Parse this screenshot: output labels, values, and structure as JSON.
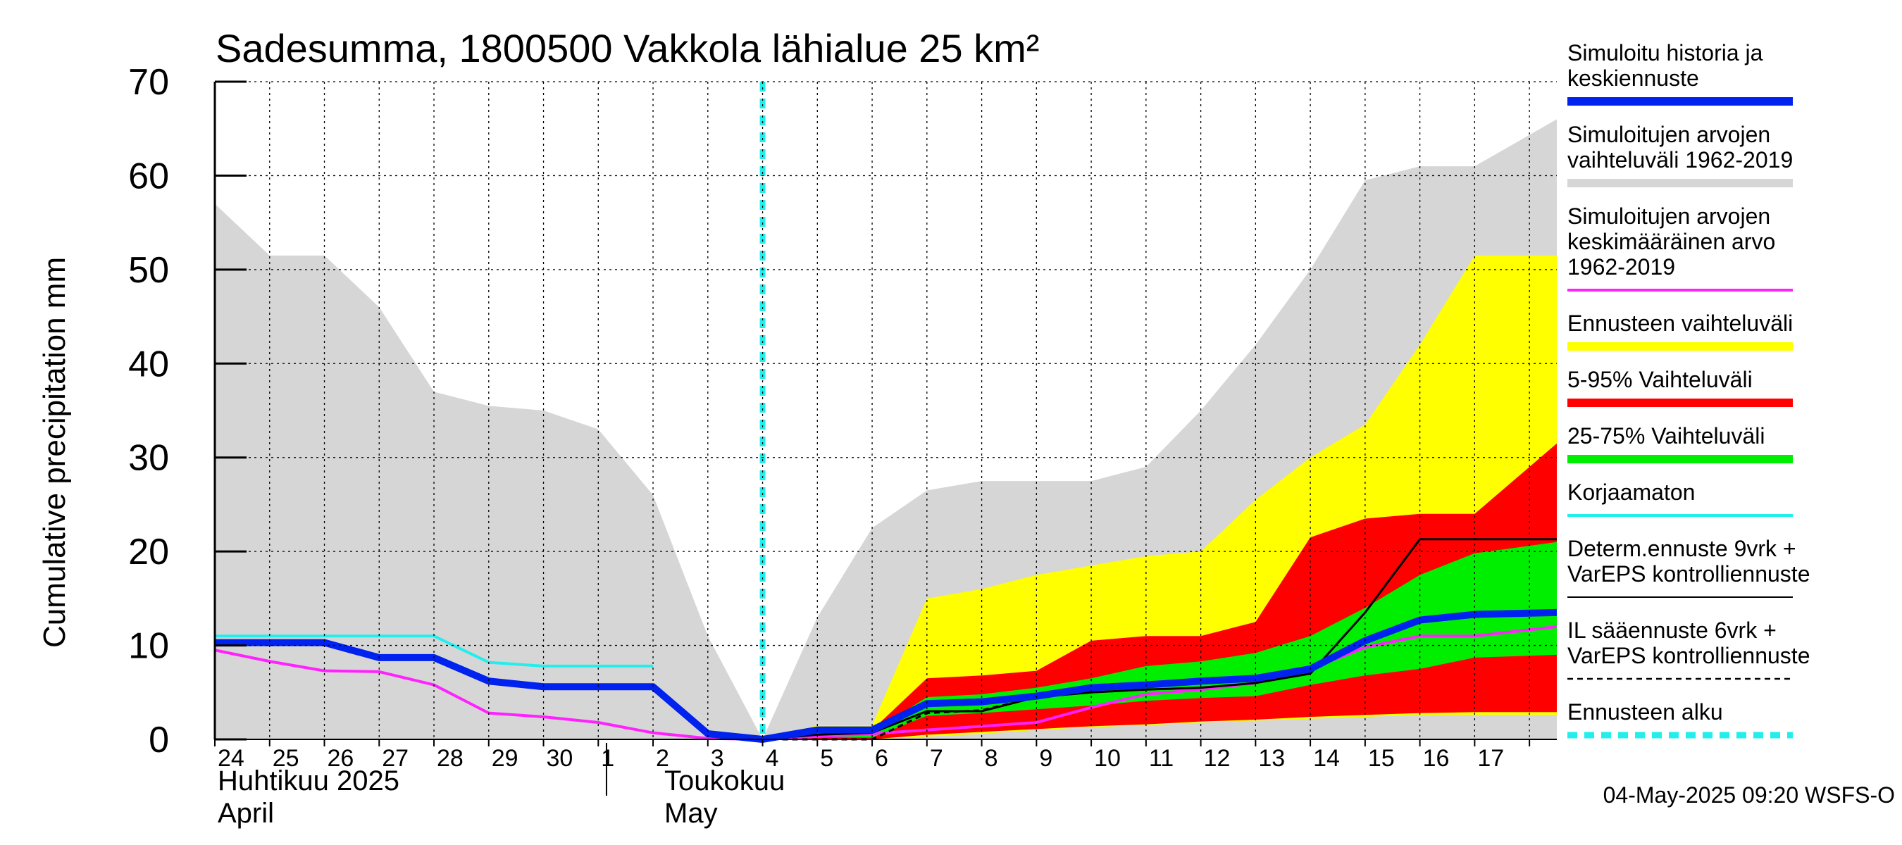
{
  "chart_data": {
    "type": "area",
    "title": "Sadesumma, 1800500 Vakkola lähialue 25 km²",
    "ylabel": "Cumulative precipitation   mm",
    "ylim": [
      0,
      70
    ],
    "yticks": [
      "0",
      "10",
      "20",
      "30",
      "40",
      "50",
      "60",
      "70"
    ],
    "day_labels": [
      "24",
      "25",
      "26",
      "27",
      "28",
      "29",
      "30",
      "1",
      "2",
      "3",
      "4",
      "5",
      "6",
      "7",
      "8",
      "9",
      "10",
      "11",
      "12",
      "13",
      "14",
      "15",
      "16",
      "17"
    ],
    "month_labels": {
      "april_fi": "Huhtikuu  2025",
      "april_en": "April",
      "may_fi": "Toukokuu",
      "may_en": "May"
    },
    "x_domain": [
      0,
      24.5
    ],
    "forecast_start_x": 10.0,
    "series": [
      {
        "name": "Simuloitujen arvojen vaihteluväli 1962-2019 (upper)",
        "x": [
          0,
          1,
          2,
          3,
          4,
          5,
          6,
          7,
          8,
          9,
          10,
          11,
          12,
          13,
          14,
          15,
          16,
          17,
          18,
          19,
          20,
          21,
          22,
          23,
          24.5
        ],
        "values": [
          57,
          51.5,
          51.5,
          46,
          37,
          35.5,
          35,
          33,
          26,
          11,
          0,
          13,
          22.5,
          26.5,
          27.5,
          27.5,
          27.5,
          29,
          35,
          42,
          50,
          59.5,
          61,
          61,
          66
        ]
      },
      {
        "name": "Ennusteen vaihteluväli (upper)",
        "x": [
          10,
          11,
          12,
          13,
          14,
          15,
          16,
          17,
          18,
          19,
          20,
          21,
          22,
          23,
          24.5
        ],
        "values": [
          0,
          1.5,
          1.5,
          15,
          16,
          17.5,
          18.5,
          19.5,
          20,
          25.5,
          30,
          33.5,
          42,
          51.5,
          51.5
        ]
      },
      {
        "name": "Ennusteen vaihteluväli (lower)",
        "x": [
          10,
          11,
          12,
          13,
          14,
          15,
          16,
          17,
          18,
          19,
          20,
          21,
          22,
          23,
          24.5
        ],
        "values": [
          0,
          0,
          0,
          0.3,
          0.6,
          1,
          1.3,
          1.5,
          1.8,
          2,
          2.2,
          2.4,
          2.6,
          2.6,
          2.6
        ]
      },
      {
        "name": "5-95% Vaihteluväli (upper)",
        "x": [
          10,
          11,
          12,
          13,
          14,
          15,
          16,
          17,
          18,
          19,
          20,
          21,
          22,
          23,
          24.5
        ],
        "values": [
          0,
          1,
          1,
          6.5,
          6.8,
          7.3,
          10.5,
          11,
          11,
          12.5,
          21.5,
          23.5,
          24,
          24,
          31.5
        ]
      },
      {
        "name": "5-95% Vaihteluväli (lower)",
        "x": [
          10,
          11,
          12,
          13,
          14,
          15,
          16,
          17,
          18,
          19,
          20,
          21,
          22,
          23,
          24.5
        ],
        "values": [
          0,
          0,
          0,
          0.5,
          0.8,
          1.1,
          1.4,
          1.6,
          1.9,
          2.1,
          2.4,
          2.6,
          2.8,
          2.9,
          2.9
        ]
      },
      {
        "name": "25-75% Vaihteluväli (upper)",
        "x": [
          10,
          11,
          12,
          13,
          14,
          15,
          16,
          17,
          18,
          19,
          20,
          21,
          22,
          23,
          24.5
        ],
        "values": [
          0,
          0.8,
          0.8,
          4.5,
          4.8,
          5.5,
          6.5,
          7.8,
          8.3,
          9.2,
          11,
          14,
          17.5,
          19.8,
          21
        ]
      },
      {
        "name": "25-75% Vaihteluväli (lower)",
        "x": [
          10,
          11,
          12,
          13,
          14,
          15,
          16,
          17,
          18,
          19,
          20,
          21,
          22,
          23,
          24.5
        ],
        "values": [
          0,
          0.2,
          0.2,
          2.5,
          2.8,
          3.2,
          3.6,
          4.1,
          4.4,
          4.6,
          5.8,
          6.8,
          7.5,
          8.7,
          9
        ]
      },
      {
        "name": "Simuloitujen arvojen keskimääräinen arvo 1962-2019",
        "x": [
          0,
          1,
          2,
          3,
          4,
          5,
          6,
          7,
          8,
          9,
          10,
          11,
          12,
          13,
          14,
          15,
          16,
          17,
          18,
          19,
          20,
          21,
          22,
          23,
          24.5
        ],
        "values": [
          9.5,
          8.3,
          7.3,
          7.2,
          5.8,
          2.8,
          2.4,
          1.8,
          0.7,
          0.1,
          0,
          0.3,
          0.6,
          1,
          1.4,
          1.8,
          3.4,
          4.8,
          5.3,
          6,
          7.5,
          9.8,
          11,
          11,
          12
        ]
      },
      {
        "name": "Korjaamaton",
        "x": [
          0,
          1,
          2,
          3,
          4,
          5,
          6,
          7,
          8
        ],
        "values": [
          11,
          11,
          11,
          11,
          11,
          8.2,
          7.8,
          7.8,
          7.8
        ]
      },
      {
        "name": "Simuloitu historia ja keskiennuste",
        "x": [
          0,
          1,
          2,
          3,
          4,
          5,
          6,
          7,
          8,
          9,
          10,
          11,
          12,
          13,
          14,
          15,
          16,
          17,
          18,
          19,
          20,
          21,
          22,
          23,
          24.5
        ],
        "values": [
          10.3,
          10.3,
          10.3,
          8.7,
          8.7,
          6.2,
          5.6,
          5.6,
          5.6,
          0.6,
          0,
          1,
          1,
          3.8,
          4,
          4.6,
          5.5,
          5.8,
          6.2,
          6.5,
          7.5,
          10.5,
          12.7,
          13.3,
          13.5
        ]
      },
      {
        "name": "Determ.ennuste 9vrk + VarEPS kontrolliennuste",
        "x": [
          10,
          11,
          12,
          13,
          14,
          15,
          16,
          17,
          18,
          19,
          20,
          21,
          22,
          23,
          24.5
        ],
        "values": [
          0,
          0.5,
          0.7,
          3,
          3,
          4.5,
          5,
          5.3,
          5.5,
          6,
          7,
          13.5,
          21.3,
          21.3,
          21.3
        ]
      },
      {
        "name": "IL sääennuste 6vrk + VarEPS kontrolliennuste",
        "x": [
          10,
          11,
          12,
          13,
          14,
          15,
          16
        ],
        "values": [
          0,
          0,
          0,
          2.8,
          3.1,
          4.5,
          5
        ]
      }
    ]
  },
  "legend": [
    {
      "label_lines": [
        "Simuloitu historia ja",
        "keskiennuste"
      ],
      "color": "#0022ee",
      "style": "thick"
    },
    {
      "label_lines": [
        "Simuloitujen arvojen",
        "vaihteluväli 1962-2019"
      ],
      "color": "#d6d6d6",
      "style": "thick"
    },
    {
      "label_lines": [
        "Simuloitujen arvojen",
        "keskimääräinen arvo",
        "   1962-2019"
      ],
      "color": "#ff22ff",
      "style": "medium"
    },
    {
      "label_lines": [
        "Ennusteen vaihteluväli"
      ],
      "color": "#ffff00",
      "style": "thick"
    },
    {
      "label_lines": [
        "5-95% Vaihteluväli"
      ],
      "color": "#ff0000",
      "style": "thick"
    },
    {
      "label_lines": [
        "25-75% Vaihteluväli"
      ],
      "color": "#00ee00",
      "style": "thick"
    },
    {
      "label_lines": [
        "Korjaamaton"
      ],
      "color": "#22eeee",
      "style": "medium"
    },
    {
      "label_lines": [
        "Determ.ennuste 9vrk +",
        "VarEPS kontrolliennuste"
      ],
      "color": "#000000",
      "style": "thin"
    },
    {
      "label_lines": [
        "IL sääennuste 6vrk  +",
        "  VarEPS kontrolliennuste"
      ],
      "color": "#000000",
      "style": "dashed"
    },
    {
      "label_lines": [
        "Ennusteen alku"
      ],
      "color": "#22eeee",
      "style": "dotted"
    }
  ],
  "timestamp": "04-May-2025 09:20 WSFS-O",
  "colors": {
    "grey": "#d6d6d6",
    "yellow": "#ffff00",
    "red": "#ff0000",
    "green": "#00ee00",
    "blue": "#0022ee",
    "magenta": "#ff22ff",
    "cyan": "#22eeee",
    "black": "#000000"
  }
}
